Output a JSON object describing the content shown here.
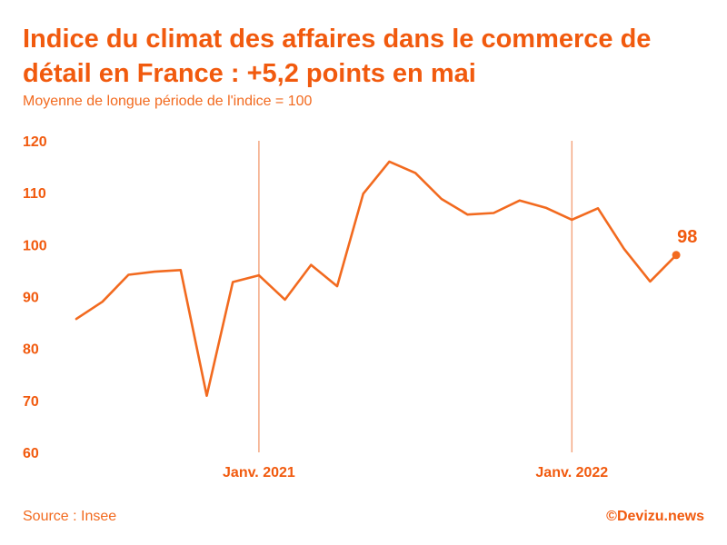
{
  "header": {
    "title": "Indice du climat des affaires dans le commerce de détail en France : +5,2 points en mai",
    "subtitle": "Moyenne de longue période de l'indice = 100"
  },
  "footer": {
    "source": "Source : Insee",
    "credit": "©Devizu.news"
  },
  "colors": {
    "line": "#f26a1f",
    "text": "#f15a0e",
    "reference_line": "#f5a882"
  },
  "chart_data": {
    "type": "line",
    "title": "Indice du climat des affaires dans le commerce de détail en France : +5,2 points en mai",
    "subtitle": "Moyenne de longue période de l'indice = 100",
    "ylim": [
      60,
      120
    ],
    "yticks": [
      120,
      110,
      100,
      90,
      80,
      70,
      60
    ],
    "x": [
      "2020-06",
      "2020-07",
      "2020-08",
      "2020-09",
      "2020-10",
      "2020-11",
      "2020-12",
      "2021-01",
      "2021-02",
      "2021-03",
      "2021-04",
      "2021-05",
      "2021-06",
      "2021-07",
      "2021-08",
      "2021-09",
      "2021-10",
      "2021-11",
      "2021-12",
      "2022-01",
      "2022-02",
      "2022-03",
      "2022-04",
      "2022-05"
    ],
    "xticks": [
      {
        "x": "2021-01",
        "label": "Janv. 2021"
      },
      {
        "x": "2022-01",
        "label": "Janv. 2022"
      }
    ],
    "series": [
      {
        "values": [
          85.7,
          89.0,
          94.2,
          94.8,
          95.1,
          70.9,
          92.8,
          94.1,
          89.4,
          96.1,
          92.0,
          109.8,
          116.0,
          113.8,
          108.8,
          105.8,
          106.1,
          108.5,
          107.1,
          104.8,
          107.0,
          99.2,
          92.9,
          98.0
        ]
      }
    ],
    "annotations": [
      {
        "x": "2022-05",
        "text": "98"
      }
    ],
    "reference_lines": [
      "2021-01",
      "2022-01"
    ],
    "grid": false,
    "legend": "none"
  }
}
